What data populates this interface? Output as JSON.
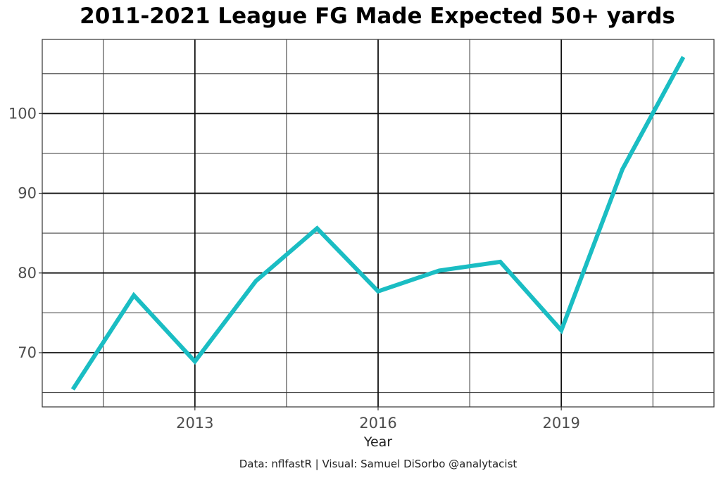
{
  "chart_data": {
    "type": "line",
    "title": "2011-2021 League FG Made Expected 50+ yards",
    "xlabel": "Year",
    "ylabel": "",
    "caption": "Data: nflfastR | Visual: Samuel DiSorbo @analytacist",
    "x": [
      2011,
      2012,
      2013,
      2014,
      2015,
      2016,
      2017,
      2018,
      2019,
      2020,
      2021
    ],
    "series": [
      {
        "name": "FG Made Expected 50+",
        "color": "#1ABDC3",
        "values": [
          65.4,
          77.2,
          68.9,
          79.0,
          85.6,
          77.7,
          80.3,
          81.4,
          72.8,
          93.0,
          107.1
        ]
      }
    ],
    "xlim": [
      2010.5,
      2021.5
    ],
    "ylim": [
      63.2,
      109.3
    ],
    "x_ticks": [
      2013,
      2016,
      2019
    ],
    "x_tick_labels": [
      "2013",
      "2016",
      "2019"
    ],
    "x_minor": [
      2011.5,
      2014.5,
      2017.5,
      2020.5
    ],
    "y_ticks": [
      70,
      80,
      90,
      100
    ],
    "y_tick_labels": [
      "70",
      "80",
      "90",
      "100"
    ],
    "y_minor": [
      65,
      75,
      85,
      95,
      105
    ],
    "grid": true,
    "legend": "none"
  }
}
